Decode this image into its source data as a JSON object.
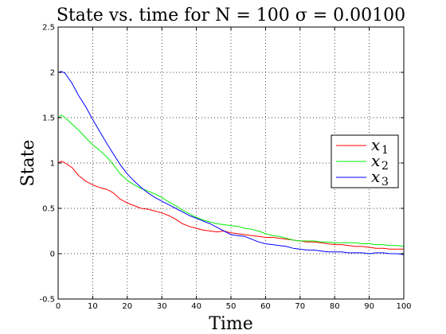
{
  "chart_data": {
    "type": "line",
    "title": "State vs. time for N = 100 σ = 0.00100",
    "xlabel": "Time",
    "ylabel": "State",
    "xlim": [
      0,
      100
    ],
    "ylim": [
      -0.5,
      2.5
    ],
    "xticks": [
      "0",
      "10",
      "20",
      "30",
      "40",
      "50",
      "60",
      "70",
      "80",
      "90",
      "100"
    ],
    "yticks": [
      "-0.5",
      "0",
      "0.5",
      "1",
      "1.5",
      "2",
      "2.5"
    ],
    "grid": true,
    "legend_position": "right",
    "x": [
      0,
      1,
      2,
      4,
      6,
      8,
      10,
      12,
      14,
      16,
      18,
      20,
      22,
      24,
      26,
      28,
      30,
      32,
      34,
      36,
      38,
      40,
      42,
      44,
      46,
      48,
      50,
      52,
      54,
      56,
      58,
      60,
      62,
      64,
      66,
      68,
      70,
      72,
      74,
      76,
      78,
      80,
      82,
      84,
      86,
      88,
      90,
      92,
      94,
      96,
      98,
      100
    ],
    "series": [
      {
        "name": "x1",
        "legend_base": "x",
        "legend_sub": "1",
        "color": "#ff0000",
        "values": [
          1.0,
          1.02,
          1.0,
          0.95,
          0.86,
          0.8,
          0.76,
          0.73,
          0.71,
          0.67,
          0.6,
          0.56,
          0.53,
          0.5,
          0.49,
          0.47,
          0.45,
          0.42,
          0.38,
          0.33,
          0.3,
          0.28,
          0.26,
          0.25,
          0.24,
          0.25,
          0.23,
          0.22,
          0.21,
          0.2,
          0.19,
          0.18,
          0.18,
          0.17,
          0.16,
          0.15,
          0.14,
          0.13,
          0.13,
          0.12,
          0.11,
          0.1,
          0.1,
          0.09,
          0.08,
          0.08,
          0.07,
          0.06,
          0.06,
          0.05,
          0.05,
          0.05
        ]
      },
      {
        "name": "x2",
        "legend_base": "x",
        "legend_sub": "2",
        "color": "#00ee00",
        "values": [
          1.5,
          1.53,
          1.5,
          1.43,
          1.36,
          1.28,
          1.2,
          1.14,
          1.07,
          0.98,
          0.88,
          0.81,
          0.76,
          0.72,
          0.69,
          0.66,
          0.62,
          0.57,
          0.53,
          0.48,
          0.44,
          0.4,
          0.37,
          0.35,
          0.33,
          0.32,
          0.31,
          0.3,
          0.28,
          0.27,
          0.25,
          0.22,
          0.2,
          0.19,
          0.17,
          0.15,
          0.14,
          0.14,
          0.14,
          0.13,
          0.13,
          0.12,
          0.12,
          0.12,
          0.12,
          0.11,
          0.11,
          0.1,
          0.1,
          0.09,
          0.09,
          0.08
        ]
      },
      {
        "name": "x3",
        "legend_base": "x",
        "legend_sub": "3",
        "color": "#0000ff",
        "values": [
          2.0,
          2.01,
          1.99,
          1.88,
          1.74,
          1.62,
          1.48,
          1.35,
          1.22,
          1.1,
          0.98,
          0.88,
          0.8,
          0.73,
          0.67,
          0.62,
          0.58,
          0.54,
          0.5,
          0.46,
          0.42,
          0.39,
          0.36,
          0.33,
          0.29,
          0.25,
          0.21,
          0.2,
          0.19,
          0.16,
          0.13,
          0.11,
          0.1,
          0.09,
          0.08,
          0.06,
          0.05,
          0.04,
          0.04,
          0.03,
          0.02,
          0.02,
          0.02,
          0.01,
          0.01,
          0.01,
          0.0,
          0.01,
          0.01,
          0.0,
          0.0,
          -0.01
        ]
      }
    ]
  }
}
